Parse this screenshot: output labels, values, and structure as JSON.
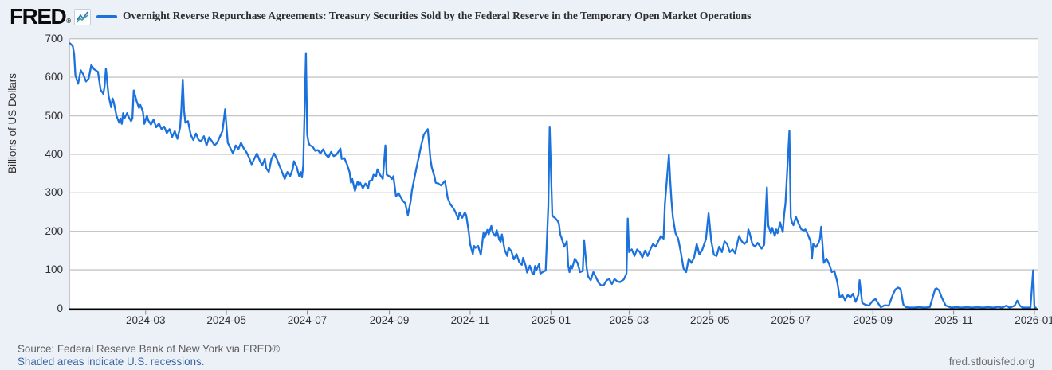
{
  "header": {
    "logo_text": "FRED",
    "registered_mark": "®"
  },
  "footer": {
    "source": "Source: Federal Reserve Bank of New York via FRED®",
    "recession_note": "Shaded areas indicate U.S. recessions.",
    "site": "fred.stlouisfed.org"
  },
  "colors": {
    "line": "#1b72dd",
    "grid": "#c6c6c6",
    "axis": "#000000",
    "tick": "#8a8a8a",
    "page_bg": "#ecf1f8",
    "plot_bg": "#ffffff",
    "link": "#3c64a4",
    "icon_line_blue": "#3b6fb6",
    "icon_line_green": "#2fa49a"
  },
  "chart_data": {
    "type": "line",
    "title": "Overnight Reverse Repurchase Agreements: Treasury Securities Sold by the Federal Reserve in the Temporary Open Market Operations",
    "ylabel": "Billions of US Dollars",
    "ylim": [
      0,
      700
    ],
    "y_ticks": [
      0,
      100,
      200,
      300,
      400,
      500,
      600,
      700
    ],
    "grid": "horizontal",
    "legend_position": "top",
    "x_unit": "days since 2024-01-01",
    "x_start_date": "2024-01-04",
    "x_end_date": "2026-01-02",
    "xlim_days": [
      3,
      734
    ],
    "x_ticks": [
      {
        "d": 60,
        "label": "2024-03"
      },
      {
        "d": 121,
        "label": "2024-05"
      },
      {
        "d": 182,
        "label": "2024-07"
      },
      {
        "d": 244,
        "label": "2024-09"
      },
      {
        "d": 305,
        "label": "2024-11"
      },
      {
        "d": 366,
        "label": "2025-01"
      },
      {
        "d": 425,
        "label": "2025-03"
      },
      {
        "d": 486,
        "label": "2025-05"
      },
      {
        "d": 547,
        "label": "2025-07"
      },
      {
        "d": 609,
        "label": "2025-09"
      },
      {
        "d": 670,
        "label": "2025-11"
      },
      {
        "d": 731,
        "label": "2026-01"
      }
    ],
    "points": [
      [
        3,
        688
      ],
      [
        5,
        681
      ],
      [
        6,
        661
      ],
      [
        7,
        605
      ],
      [
        9,
        583
      ],
      [
        11,
        618
      ],
      [
        13,
        607
      ],
      [
        15,
        589
      ],
      [
        17,
        597
      ],
      [
        19,
        632
      ],
      [
        21,
        621
      ],
      [
        24,
        614
      ],
      [
        26,
        568
      ],
      [
        28,
        557
      ],
      [
        29,
        576
      ],
      [
        30,
        623
      ],
      [
        32,
        552
      ],
      [
        34,
        522
      ],
      [
        35,
        545
      ],
      [
        36,
        535
      ],
      [
        38,
        500
      ],
      [
        40,
        482
      ],
      [
        41,
        493
      ],
      [
        42,
        479
      ],
      [
        43,
        507
      ],
      [
        44,
        493
      ],
      [
        46,
        507
      ],
      [
        47,
        498
      ],
      [
        49,
        486
      ],
      [
        50,
        493
      ],
      [
        51,
        566
      ],
      [
        53,
        540
      ],
      [
        55,
        520
      ],
      [
        56,
        528
      ],
      [
        58,
        510
      ],
      [
        59,
        479
      ],
      [
        61,
        500
      ],
      [
        62,
        488
      ],
      [
        64,
        477
      ],
      [
        66,
        490
      ],
      [
        68,
        470
      ],
      [
        70,
        480
      ],
      [
        72,
        465
      ],
      [
        74,
        472
      ],
      [
        76,
        455
      ],
      [
        78,
        465
      ],
      [
        80,
        445
      ],
      [
        82,
        460
      ],
      [
        84,
        440
      ],
      [
        85,
        455
      ],
      [
        86,
        470
      ],
      [
        87,
        520
      ],
      [
        88,
        594
      ],
      [
        89,
        514
      ],
      [
        90,
        482
      ],
      [
        92,
        486
      ],
      [
        94,
        451
      ],
      [
        96,
        437
      ],
      [
        98,
        454
      ],
      [
        100,
        437
      ],
      [
        102,
        434
      ],
      [
        104,
        447
      ],
      [
        106,
        423
      ],
      [
        108,
        444
      ],
      [
        110,
        434
      ],
      [
        112,
        423
      ],
      [
        114,
        430
      ],
      [
        116,
        445
      ],
      [
        118,
        460
      ],
      [
        120,
        517
      ],
      [
        122,
        430
      ],
      [
        124,
        416
      ],
      [
        126,
        402
      ],
      [
        128,
        423
      ],
      [
        130,
        413
      ],
      [
        132,
        430
      ],
      [
        134,
        416
      ],
      [
        136,
        406
      ],
      [
        138,
        392
      ],
      [
        140,
        374
      ],
      [
        142,
        388
      ],
      [
        144,
        402
      ],
      [
        146,
        385
      ],
      [
        148,
        371
      ],
      [
        150,
        388
      ],
      [
        151,
        364
      ],
      [
        153,
        354
      ],
      [
        155,
        388
      ],
      [
        157,
        402
      ],
      [
        159,
        388
      ],
      [
        161,
        371
      ],
      [
        163,
        354
      ],
      [
        165,
        336
      ],
      [
        167,
        354
      ],
      [
        169,
        343
      ],
      [
        171,
        361
      ],
      [
        172,
        382
      ],
      [
        174,
        368
      ],
      [
        175,
        354
      ],
      [
        176,
        343
      ],
      [
        177,
        354
      ],
      [
        178,
        340
      ],
      [
        179,
        371
      ],
      [
        180,
        513
      ],
      [
        181,
        663
      ],
      [
        182,
        451
      ],
      [
        183,
        430
      ],
      [
        184,
        423
      ],
      [
        186,
        420
      ],
      [
        188,
        409
      ],
      [
        190,
        411
      ],
      [
        192,
        402
      ],
      [
        194,
        413
      ],
      [
        196,
        399
      ],
      [
        198,
        392
      ],
      [
        200,
        406
      ],
      [
        202,
        395
      ],
      [
        204,
        399
      ],
      [
        206,
        409
      ],
      [
        207,
        415
      ],
      [
        208,
        388
      ],
      [
        210,
        390
      ],
      [
        212,
        374
      ],
      [
        214,
        353
      ],
      [
        215,
        326
      ],
      [
        216,
        336
      ],
      [
        218,
        305
      ],
      [
        220,
        329
      ],
      [
        221,
        319
      ],
      [
        222,
        326
      ],
      [
        224,
        312
      ],
      [
        226,
        324
      ],
      [
        228,
        312
      ],
      [
        229,
        331
      ],
      [
        231,
        333
      ],
      [
        232,
        347
      ],
      [
        234,
        343
      ],
      [
        235,
        361
      ],
      [
        237,
        347
      ],
      [
        239,
        336
      ],
      [
        241,
        423
      ],
      [
        242,
        347
      ],
      [
        244,
        343
      ],
      [
        246,
        336
      ],
      [
        247,
        343
      ],
      [
        249,
        291
      ],
      [
        251,
        299
      ],
      [
        252,
        292
      ],
      [
        254,
        280
      ],
      [
        256,
        273
      ],
      [
        258,
        242
      ],
      [
        260,
        277
      ],
      [
        261,
        305
      ],
      [
        263,
        339
      ],
      [
        265,
        374
      ],
      [
        267,
        406
      ],
      [
        268,
        423
      ],
      [
        270,
        451
      ],
      [
        273,
        465
      ],
      [
        275,
        388
      ],
      [
        276,
        366
      ],
      [
        278,
        343
      ],
      [
        279,
        326
      ],
      [
        281,
        324
      ],
      [
        283,
        319
      ],
      [
        285,
        327
      ],
      [
        286,
        331
      ],
      [
        288,
        287
      ],
      [
        290,
        270
      ],
      [
        291,
        266
      ],
      [
        293,
        256
      ],
      [
        294,
        249
      ],
      [
        296,
        232
      ],
      [
        297,
        249
      ],
      [
        299,
        235
      ],
      [
        301,
        249
      ],
      [
        302,
        242
      ],
      [
        304,
        197
      ],
      [
        305,
        166
      ],
      [
        307,
        141
      ],
      [
        308,
        162
      ],
      [
        309,
        157
      ],
      [
        311,
        162
      ],
      [
        313,
        139
      ],
      [
        314,
        166
      ],
      [
        315,
        196
      ],
      [
        316,
        184
      ],
      [
        318,
        204
      ],
      [
        319,
        192
      ],
      [
        321,
        214
      ],
      [
        322,
        197
      ],
      [
        324,
        188
      ],
      [
        325,
        203
      ],
      [
        327,
        178
      ],
      [
        328,
        173
      ],
      [
        329,
        192
      ],
      [
        331,
        152
      ],
      [
        333,
        136
      ],
      [
        334,
        157
      ],
      [
        336,
        149
      ],
      [
        338,
        127
      ],
      [
        339,
        134
      ],
      [
        340,
        141
      ],
      [
        342,
        120
      ],
      [
        344,
        113
      ],
      [
        345,
        131
      ],
      [
        347,
        109
      ],
      [
        348,
        93
      ],
      [
        350,
        111
      ],
      [
        352,
        90
      ],
      [
        353,
        88
      ],
      [
        354,
        110
      ],
      [
        355,
        100
      ],
      [
        357,
        115
      ],
      [
        358,
        90
      ],
      [
        360,
        95
      ],
      [
        362,
        98
      ],
      [
        364,
        265
      ],
      [
        365,
        472
      ],
      [
        367,
        242
      ],
      [
        368,
        237
      ],
      [
        369,
        235
      ],
      [
        371,
        227
      ],
      [
        372,
        220
      ],
      [
        373,
        192
      ],
      [
        374,
        183
      ],
      [
        375,
        171
      ],
      [
        376,
        160
      ],
      [
        378,
        174
      ],
      [
        379,
        111
      ],
      [
        380,
        94
      ],
      [
        381,
        111
      ],
      [
        382,
        104
      ],
      [
        384,
        129
      ],
      [
        386,
        118
      ],
      [
        388,
        94
      ],
      [
        390,
        97
      ],
      [
        391,
        177
      ],
      [
        393,
        104
      ],
      [
        394,
        83
      ],
      [
        396,
        73
      ],
      [
        398,
        94
      ],
      [
        400,
        80
      ],
      [
        402,
        66
      ],
      [
        404,
        59
      ],
      [
        406,
        61
      ],
      [
        408,
        73
      ],
      [
        410,
        76
      ],
      [
        412,
        63
      ],
      [
        414,
        76
      ],
      [
        416,
        70
      ],
      [
        418,
        68
      ],
      [
        421,
        75
      ],
      [
        423,
        90
      ],
      [
        424,
        233
      ],
      [
        425,
        146
      ],
      [
        427,
        153
      ],
      [
        429,
        136
      ],
      [
        431,
        153
      ],
      [
        433,
        146
      ],
      [
        435,
        132
      ],
      [
        437,
        150
      ],
      [
        439,
        136
      ],
      [
        441,
        153
      ],
      [
        443,
        167
      ],
      [
        445,
        160
      ],
      [
        447,
        174
      ],
      [
        449,
        188
      ],
      [
        451,
        181
      ],
      [
        452,
        271
      ],
      [
        455,
        399
      ],
      [
        456,
        334
      ],
      [
        457,
        278
      ],
      [
        458,
        237
      ],
      [
        459,
        216
      ],
      [
        460,
        195
      ],
      [
        462,
        181
      ],
      [
        464,
        146
      ],
      [
        466,
        104
      ],
      [
        468,
        94
      ],
      [
        470,
        129
      ],
      [
        472,
        118
      ],
      [
        474,
        132
      ],
      [
        476,
        167
      ],
      [
        478,
        140
      ],
      [
        480,
        150
      ],
      [
        483,
        180
      ],
      [
        485,
        247
      ],
      [
        487,
        174
      ],
      [
        489,
        139
      ],
      [
        491,
        136
      ],
      [
        493,
        160
      ],
      [
        495,
        146
      ],
      [
        497,
        174
      ],
      [
        499,
        167
      ],
      [
        501,
        146
      ],
      [
        503,
        153
      ],
      [
        505,
        143
      ],
      [
        507,
        174
      ],
      [
        508,
        188
      ],
      [
        510,
        174
      ],
      [
        512,
        167
      ],
      [
        514,
        174
      ],
      [
        515,
        205
      ],
      [
        516,
        195
      ],
      [
        518,
        167
      ],
      [
        520,
        160
      ],
      [
        522,
        170
      ],
      [
        525,
        155
      ],
      [
        527,
        165
      ],
      [
        529,
        314
      ],
      [
        530,
        216
      ],
      [
        532,
        195
      ],
      [
        533,
        209
      ],
      [
        535,
        188
      ],
      [
        536,
        205
      ],
      [
        537,
        195
      ],
      [
        539,
        223
      ],
      [
        540,
        209
      ],
      [
        541,
        198
      ],
      [
        542,
        244
      ],
      [
        543,
        271
      ],
      [
        546,
        461
      ],
      [
        547,
        237
      ],
      [
        548,
        223
      ],
      [
        549,
        216
      ],
      [
        551,
        237
      ],
      [
        553,
        219
      ],
      [
        555,
        205
      ],
      [
        557,
        202
      ],
      [
        558,
        205
      ],
      [
        560,
        191
      ],
      [
        562,
        174
      ],
      [
        563,
        129
      ],
      [
        564,
        167
      ],
      [
        566,
        159
      ],
      [
        568,
        170
      ],
      [
        569,
        181
      ],
      [
        570,
        212
      ],
      [
        572,
        118
      ],
      [
        574,
        129
      ],
      [
        576,
        115
      ],
      [
        578,
        94
      ],
      [
        580,
        97
      ],
      [
        582,
        70
      ],
      [
        584,
        28
      ],
      [
        586,
        35
      ],
      [
        588,
        21
      ],
      [
        590,
        35
      ],
      [
        592,
        28
      ],
      [
        594,
        38
      ],
      [
        596,
        17
      ],
      [
        598,
        35
      ],
      [
        599,
        73
      ],
      [
        601,
        14
      ],
      [
        603,
        10
      ],
      [
        606,
        7
      ],
      [
        609,
        20
      ],
      [
        611,
        24
      ],
      [
        613,
        13
      ],
      [
        615,
        3
      ],
      [
        618,
        8
      ],
      [
        621,
        7
      ],
      [
        624,
        35
      ],
      [
        626,
        49
      ],
      [
        628,
        54
      ],
      [
        630,
        50
      ],
      [
        632,
        10
      ],
      [
        634,
        3
      ],
      [
        637,
        1
      ],
      [
        640,
        1
      ],
      [
        644,
        3
      ],
      [
        648,
        2
      ],
      [
        652,
        3
      ],
      [
        656,
        50
      ],
      [
        657,
        52
      ],
      [
        659,
        47
      ],
      [
        661,
        28
      ],
      [
        664,
        7
      ],
      [
        668,
        2
      ],
      [
        672,
        3
      ],
      [
        676,
        1
      ],
      [
        680,
        3
      ],
      [
        684,
        1
      ],
      [
        688,
        3
      ],
      [
        692,
        1
      ],
      [
        696,
        3
      ],
      [
        700,
        1
      ],
      [
        704,
        4
      ],
      [
        706,
        1
      ],
      [
        708,
        4
      ],
      [
        710,
        7
      ],
      [
        712,
        1
      ],
      [
        714,
        4
      ],
      [
        716,
        7
      ],
      [
        718,
        20
      ],
      [
        720,
        7
      ],
      [
        722,
        1
      ],
      [
        726,
        2
      ],
      [
        728,
        1
      ],
      [
        730,
        99
      ],
      [
        731,
        2
      ],
      [
        732,
        1
      ]
    ]
  }
}
